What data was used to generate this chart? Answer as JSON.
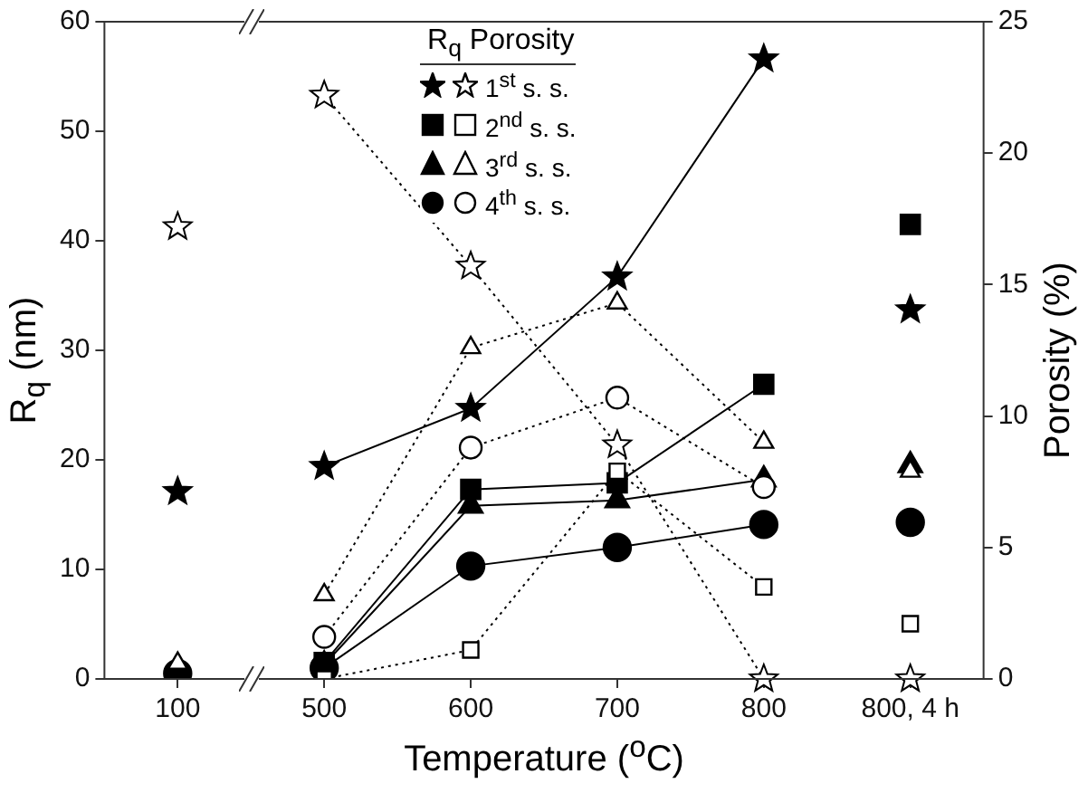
{
  "chart_data": {
    "type": "line",
    "xlabel": "Temperature ($^{o}$C)",
    "ylabel": "R$_{q}$ (nm)",
    "y2label": "Porosity (%)",
    "legend_title": "R$_{q}$ Porosity",
    "legend": "top",
    "grid": false,
    "categories": [
      "100",
      "500",
      "600",
      "700",
      "800",
      "800, 4 h"
    ],
    "ylim": [
      0,
      60
    ],
    "yticks": [
      0,
      10,
      20,
      30,
      40,
      50,
      60
    ],
    "y2lim": [
      0,
      25
    ],
    "y2ticks": [
      0,
      5,
      10,
      15,
      20,
      25
    ],
    "series": [
      {
        "type": "line",
        "marker": "star",
        "line_style": "solid",
        "color": "#000000",
        "values": [
          null,
          19.4,
          24.7,
          36.7,
          56.6,
          null
        ]
      },
      {
        "type": "scatter",
        "marker": "star",
        "color": "#000000",
        "values": [
          17.1,
          null,
          null,
          null,
          null,
          33.7
        ]
      },
      {
        "type": "line",
        "marker": "square",
        "line_style": "solid",
        "color": "#000000",
        "values": [
          null,
          1.5,
          17.3,
          17.9,
          26.9,
          null
        ]
      },
      {
        "type": "scatter",
        "marker": "square",
        "color": "#000000",
        "values": [
          null,
          null,
          null,
          null,
          null,
          41.5
        ]
      },
      {
        "type": "line",
        "marker": "triangle",
        "line_style": "solid",
        "color": "#000000",
        "values": [
          null,
          1.3,
          15.8,
          16.3,
          18.2,
          null
        ]
      },
      {
        "type": "scatter",
        "marker": "triangle",
        "color": "#000000",
        "values": [
          null,
          null,
          null,
          null,
          null,
          19.5
        ]
      },
      {
        "type": "line",
        "marker": "circle",
        "line_style": "solid",
        "color": "#000000",
        "values": [
          null,
          1,
          10.3,
          12,
          14.1,
          null
        ]
      },
      {
        "type": "scatter",
        "marker": "circle",
        "color": "#000000",
        "values": [
          0.5,
          null,
          null,
          null,
          null,
          14.3
        ]
      },
      {
        "name": "1$^{st}$ s. s.",
        "type": "line",
        "axis": "y2",
        "marker": "star",
        "line_style": "dotted",
        "color": "#000000",
        "values": [
          null,
          22.2,
          15.7,
          8.9,
          0,
          null
        ]
      },
      {
        "type": "scatter",
        "axis": "y2",
        "marker": "star",
        "color": "#000000",
        "values": [
          17.2,
          null,
          null,
          null,
          null,
          0
        ]
      },
      {
        "name": "2$^{nd}$ s. s.",
        "type": "line",
        "axis": "y2",
        "marker": "square",
        "line_style": "dotted",
        "color": "#000000",
        "values": [
          null,
          0,
          1.1,
          7.9,
          3.5,
          null
        ]
      },
      {
        "type": "scatter",
        "axis": "y2",
        "marker": "square",
        "color": "#000000",
        "values": [
          null,
          null,
          null,
          null,
          null,
          2.1
        ]
      },
      {
        "name": "3$^{rd}$ s. s.",
        "type": "line",
        "axis": "y2",
        "marker": "triangle",
        "line_style": "dotted",
        "color": "#000000",
        "values": [
          null,
          3.2,
          12.6,
          14.3,
          9,
          null
        ]
      },
      {
        "type": "scatter",
        "axis": "y2",
        "marker": "triangle",
        "color": "#000000",
        "values": [
          0.6,
          null,
          null,
          null,
          null,
          7.9
        ]
      },
      {
        "name": "4$^{th}$ s. s.",
        "type": "line",
        "axis": "y2",
        "marker": "circle",
        "line_style": "dotted",
        "color": "#000000",
        "values": [
          null,
          1.6,
          8.8,
          10.7,
          7.3,
          null
        ]
      },
      {
        "type": "scatter",
        "axis": "y2",
        "marker": "circle",
        "color": "#000000",
        "values": [
          null,
          null,
          null,
          null,
          null,
          null
        ]
      }
    ]
  }
}
